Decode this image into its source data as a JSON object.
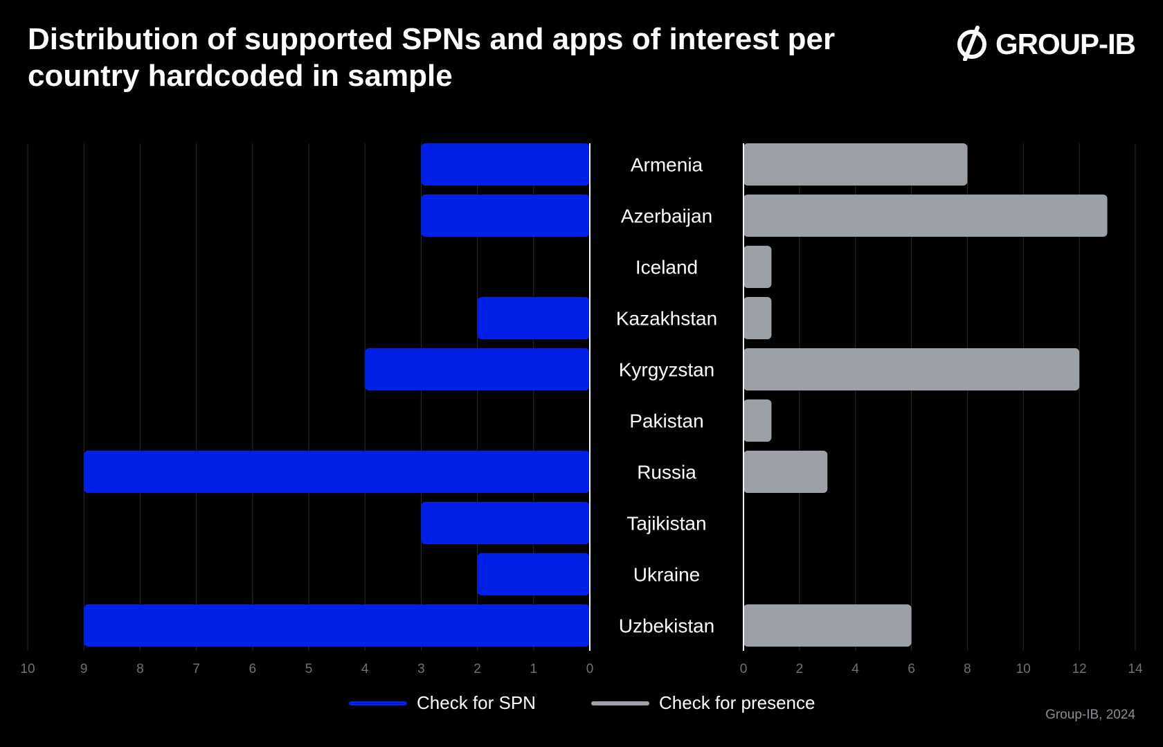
{
  "title": "Distribution of supported SPNs and apps of interest per country hardcoded in sample",
  "logo": {
    "text": "GROUP-IB",
    "icon": "group-ib-logo-icon"
  },
  "source": "Group-IB, 2024",
  "colors": {
    "spn": "#0020e8",
    "presence": "#9ca1a8",
    "grid": "#2a2a2a",
    "axis": "#ffffff",
    "tick": "#6f7278"
  },
  "legend": [
    {
      "label": "Check for SPN",
      "color": "#0020e8"
    },
    {
      "label": "Check for presence",
      "color": "#9ca1a8"
    }
  ],
  "chart_data": {
    "type": "bar",
    "orientation": "horizontal-butterfly",
    "categories": [
      "Armenia",
      "Azerbaijan",
      "Iceland",
      "Kazakhstan",
      "Kyrgyzstan",
      "Pakistan",
      "Russia",
      "Tajikistan",
      "Ukraine",
      "Uzbekistan"
    ],
    "series": [
      {
        "name": "Check for SPN",
        "side": "left",
        "values": [
          3,
          3,
          0,
          2,
          4,
          0,
          9,
          3,
          2,
          9
        ],
        "xlim": [
          0,
          10
        ],
        "ticks": [
          10,
          9,
          8,
          7,
          6,
          5,
          4,
          3,
          2,
          1,
          0
        ]
      },
      {
        "name": "Check for presence",
        "side": "right",
        "values": [
          8,
          13,
          1,
          1,
          12,
          1,
          3,
          0,
          0,
          6
        ],
        "xlim": [
          0,
          14
        ],
        "ticks": [
          0,
          2,
          4,
          6,
          8,
          10,
          12,
          14
        ]
      }
    ],
    "grid": true,
    "legend_position": "bottom-center"
  }
}
